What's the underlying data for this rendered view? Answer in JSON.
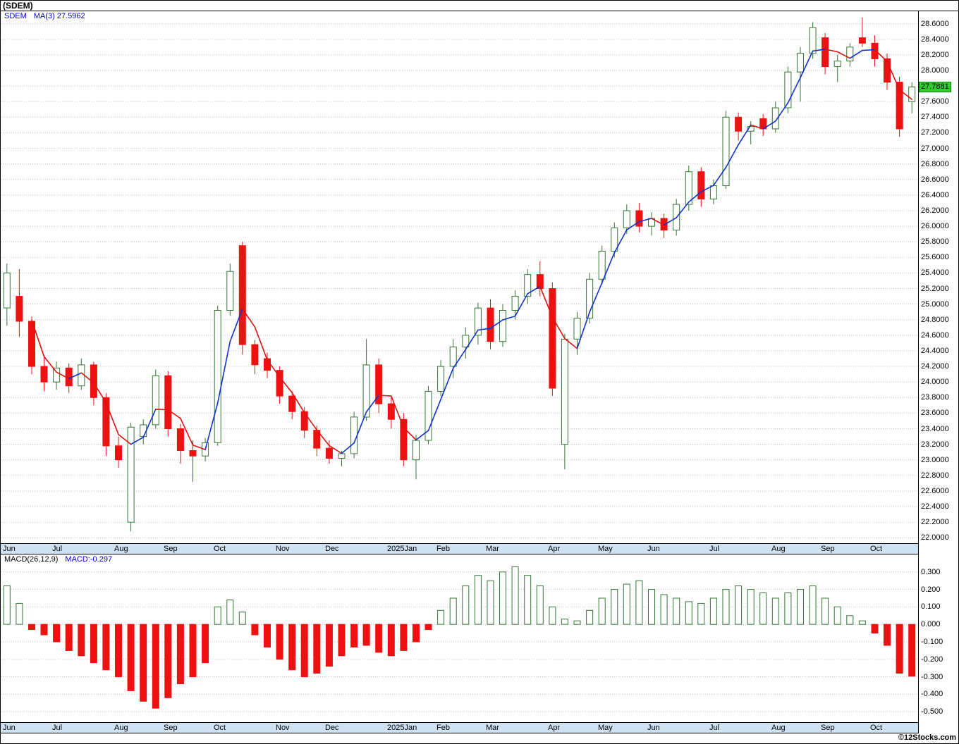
{
  "title": "(SDEM)",
  "symbol": "SDEM",
  "main_legend": {
    "symbol": "SDEM",
    "ma_label": "MA(3)",
    "ma_value": "27.5962"
  },
  "macd_legend": {
    "name": "MACD(26,12,9)",
    "value_label": "MACD:-0.297"
  },
  "price_tag": "27.7881",
  "footer": {
    "copyright": "©12Stocks.com"
  },
  "colors": {
    "up": "#337733",
    "down": "#ee1111",
    "ma_rising": "#1133cc",
    "ma_falling": "#dd1111",
    "grid": "#c4c4c4",
    "month_strip_bg": "#cfe2f3",
    "price_tag_bg": "#33cc33",
    "legend_blue": "#0000cc"
  },
  "chart_data": [
    {
      "type": "candlestick",
      "title": "SDEM weekly price with MA(3) overlay",
      "ylim": [
        21.93,
        28.76
      ],
      "y_ticks": [
        "28.6000",
        "28.4000",
        "28.2000",
        "28.0000",
        "27.8000",
        "27.6000",
        "27.4000",
        "27.2000",
        "27.0000",
        "26.8000",
        "26.6000",
        "26.4000",
        "26.2000",
        "26.0000",
        "25.8000",
        "25.6000",
        "25.4000",
        "25.2000",
        "25.0000",
        "24.8000",
        "24.6000",
        "24.4000",
        "24.2000",
        "24.0000",
        "23.8000",
        "23.6000",
        "23.4000",
        "23.2000",
        "23.0000",
        "22.8000",
        "22.6000",
        "22.4000",
        "22.2000",
        "22.0000"
      ],
      "x_month_labels": [
        {
          "label": "Jun",
          "index": 0
        },
        {
          "label": "Jul",
          "index": 4
        },
        {
          "label": "Aug",
          "index": 9
        },
        {
          "label": "Sep",
          "index": 13
        },
        {
          "label": "Oct",
          "index": 17
        },
        {
          "label": "Nov",
          "index": 22
        },
        {
          "label": "Dec",
          "index": 26
        },
        {
          "label": "2025Jan",
          "index": 31
        },
        {
          "label": "Feb",
          "index": 35
        },
        {
          "label": "Mar",
          "index": 39
        },
        {
          "label": "Apr",
          "index": 44
        },
        {
          "label": "May",
          "index": 48
        },
        {
          "label": "Jun",
          "index": 52
        },
        {
          "label": "Jul",
          "index": 57
        },
        {
          "label": "Aug",
          "index": 62
        },
        {
          "label": "Sep",
          "index": 66
        },
        {
          "label": "Oct",
          "index": 70
        }
      ],
      "last_close": 27.7881,
      "ma_period": 3,
      "candles": [
        [
          24.95,
          25.52,
          24.72,
          25.4
        ],
        [
          25.1,
          25.45,
          24.58,
          24.78
        ],
        [
          24.78,
          24.84,
          24.1,
          24.2
        ],
        [
          24.2,
          24.34,
          23.88,
          24.0
        ],
        [
          24.0,
          24.26,
          23.9,
          24.18
        ],
        [
          24.18,
          24.24,
          23.86,
          23.95
        ],
        [
          23.95,
          24.3,
          23.9,
          24.22
        ],
        [
          24.22,
          24.26,
          23.7,
          23.8
        ],
        [
          23.8,
          23.86,
          23.05,
          23.18
        ],
        [
          23.18,
          23.3,
          22.9,
          23.0
        ],
        [
          22.2,
          23.48,
          22.08,
          23.42
        ],
        [
          23.3,
          23.52,
          23.2,
          23.45
        ],
        [
          23.45,
          24.16,
          23.4,
          24.08
        ],
        [
          24.08,
          24.14,
          23.3,
          23.4
        ],
        [
          23.4,
          23.46,
          22.95,
          23.12
        ],
        [
          23.12,
          23.25,
          22.72,
          23.05
        ],
        [
          23.05,
          23.28,
          22.98,
          23.22
        ],
        [
          23.22,
          24.98,
          23.18,
          24.92
        ],
        [
          24.92,
          25.52,
          24.85,
          25.42
        ],
        [
          25.75,
          25.8,
          24.35,
          24.48
        ],
        [
          24.48,
          24.54,
          24.1,
          24.22
        ],
        [
          24.3,
          24.38,
          24.05,
          24.15
        ],
        [
          24.15,
          24.2,
          23.72,
          23.82
        ],
        [
          23.82,
          23.88,
          23.52,
          23.62
        ],
        [
          23.62,
          23.68,
          23.28,
          23.38
        ],
        [
          23.38,
          23.44,
          23.05,
          23.15
        ],
        [
          23.15,
          23.25,
          22.95,
          23.02
        ],
        [
          23.02,
          23.12,
          22.92,
          23.08
        ],
        [
          23.08,
          23.62,
          23.02,
          23.55
        ],
        [
          23.55,
          24.55,
          23.5,
          24.22
        ],
        [
          24.22,
          24.3,
          23.6,
          23.72
        ],
        [
          23.72,
          23.8,
          23.4,
          23.52
        ],
        [
          23.52,
          23.6,
          22.92,
          23.0
        ],
        [
          23.0,
          23.32,
          22.75,
          23.25
        ],
        [
          23.25,
          23.95,
          23.2,
          23.88
        ],
        [
          23.88,
          24.28,
          23.82,
          24.2
        ],
        [
          24.2,
          24.55,
          24.05,
          24.45
        ],
        [
          24.45,
          24.7,
          24.3,
          24.6
        ],
        [
          24.6,
          25.02,
          24.48,
          24.95
        ],
        [
          24.95,
          25.06,
          24.42,
          24.52
        ],
        [
          24.52,
          25.0,
          24.45,
          24.92
        ],
        [
          24.92,
          25.18,
          24.8,
          25.1
        ],
        [
          25.1,
          25.45,
          25.0,
          25.38
        ],
        [
          25.38,
          25.55,
          25.1,
          25.2
        ],
        [
          25.2,
          25.28,
          23.82,
          23.92
        ],
        [
          23.2,
          24.62,
          22.88,
          24.55
        ],
        [
          24.55,
          24.9,
          24.35,
          24.82
        ],
        [
          24.82,
          25.4,
          24.75,
          25.32
        ],
        [
          25.32,
          25.75,
          25.25,
          25.68
        ],
        [
          25.68,
          26.05,
          25.6,
          25.98
        ],
        [
          25.98,
          26.28,
          25.9,
          26.2
        ],
        [
          26.2,
          26.3,
          25.92,
          26.0
        ],
        [
          26.0,
          26.18,
          25.88,
          26.1
        ],
        [
          26.1,
          26.16,
          25.85,
          25.95
        ],
        [
          25.95,
          26.35,
          25.88,
          26.28
        ],
        [
          26.28,
          26.78,
          26.2,
          26.7
        ],
        [
          26.7,
          26.76,
          26.25,
          26.35
        ],
        [
          26.35,
          26.6,
          26.28,
          26.52
        ],
        [
          26.52,
          27.48,
          26.48,
          27.4
        ],
        [
          27.4,
          27.46,
          27.1,
          27.22
        ],
        [
          27.22,
          27.35,
          27.05,
          27.28
        ],
        [
          27.38,
          27.44,
          27.16,
          27.25
        ],
        [
          27.25,
          27.6,
          27.2,
          27.52
        ],
        [
          27.52,
          28.05,
          27.45,
          27.98
        ],
        [
          27.98,
          28.3,
          27.6,
          28.22
        ],
        [
          28.22,
          28.62,
          28.15,
          28.55
        ],
        [
          28.42,
          28.48,
          27.95,
          28.05
        ],
        [
          28.05,
          28.2,
          27.85,
          28.12
        ],
        [
          28.12,
          28.35,
          28.05,
          28.3
        ],
        [
          28.42,
          28.68,
          28.3,
          28.35
        ],
        [
          28.35,
          28.45,
          28.05,
          28.15
        ],
        [
          28.15,
          28.22,
          27.75,
          27.85
        ],
        [
          27.85,
          27.92,
          27.15,
          27.25
        ],
        [
          27.6,
          27.85,
          27.45,
          27.7881
        ]
      ]
    },
    {
      "type": "bar",
      "title": "MACD(26,12,9) histogram",
      "ylim": [
        -0.56,
        0.4
      ],
      "y_ticks": [
        "0.300",
        "0.200",
        "0.100",
        "0.000",
        "-0.100",
        "-0.200",
        "-0.300",
        "-0.400",
        "-0.500"
      ],
      "last_value": -0.297,
      "values": [
        0.22,
        0.12,
        -0.03,
        -0.06,
        -0.1,
        -0.15,
        -0.18,
        -0.22,
        -0.26,
        -0.3,
        -0.38,
        -0.44,
        -0.48,
        -0.42,
        -0.34,
        -0.3,
        -0.22,
        0.1,
        0.14,
        0.07,
        -0.06,
        -0.13,
        -0.2,
        -0.26,
        -0.3,
        -0.28,
        -0.24,
        -0.18,
        -0.13,
        -0.12,
        -0.16,
        -0.18,
        -0.15,
        -0.1,
        -0.03,
        0.08,
        0.15,
        0.22,
        0.28,
        0.25,
        0.3,
        0.33,
        0.28,
        0.22,
        0.1,
        0.03,
        0.02,
        0.08,
        0.15,
        0.2,
        0.23,
        0.25,
        0.2,
        0.17,
        0.15,
        0.13,
        0.12,
        0.15,
        0.2,
        0.22,
        0.2,
        0.18,
        0.15,
        0.18,
        0.2,
        0.22,
        0.15,
        0.1,
        0.05,
        0.02,
        -0.05,
        -0.12,
        -0.28,
        -0.297
      ]
    }
  ]
}
